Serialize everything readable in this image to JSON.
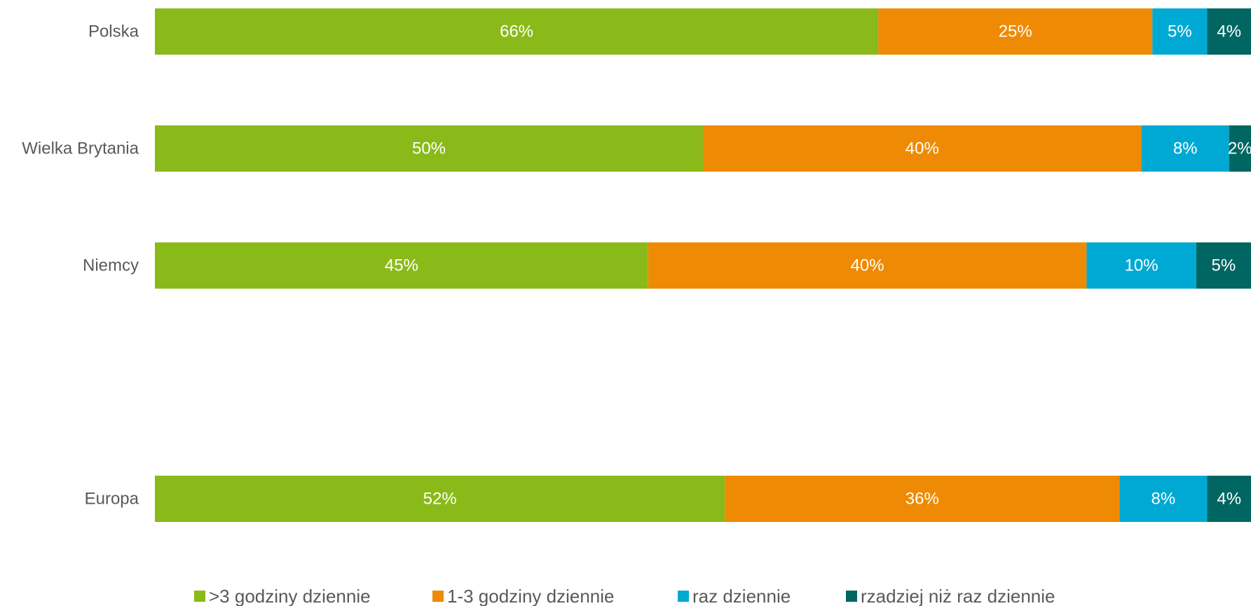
{
  "chart_data": {
    "type": "bar",
    "orientation": "horizontal",
    "stacked": true,
    "percent_stacked": true,
    "categories": [
      "Polska",
      "Wielka Brytania",
      "Niemcy",
      "Europa"
    ],
    "series": [
      {
        "name": ">3 godziny dziennie",
        "color": "#8aba1a",
        "values": [
          66,
          50,
          45,
          52
        ],
        "labels": [
          "66%",
          "50%",
          "45%",
          "52%"
        ]
      },
      {
        "name": "1-3 godziny dziennie",
        "color": "#ef8a04",
        "values": [
          25,
          40,
          40,
          36
        ],
        "labels": [
          "25%",
          "40%",
          "40%",
          "36%"
        ]
      },
      {
        "name": "raz dziennie",
        "color": "#00a9d4",
        "values": [
          5,
          8,
          10,
          8
        ],
        "labels": [
          "5%",
          "8%",
          "10%",
          "8%"
        ]
      },
      {
        "name": "rzadziej niż raz dziennie",
        "color": "#006662",
        "values": [
          4,
          2,
          5,
          4
        ],
        "labels": [
          "4%",
          "2%",
          "5%",
          "4%"
        ]
      }
    ],
    "xlim": [
      0,
      100
    ],
    "grid": false,
    "legend_position": "bottom"
  }
}
